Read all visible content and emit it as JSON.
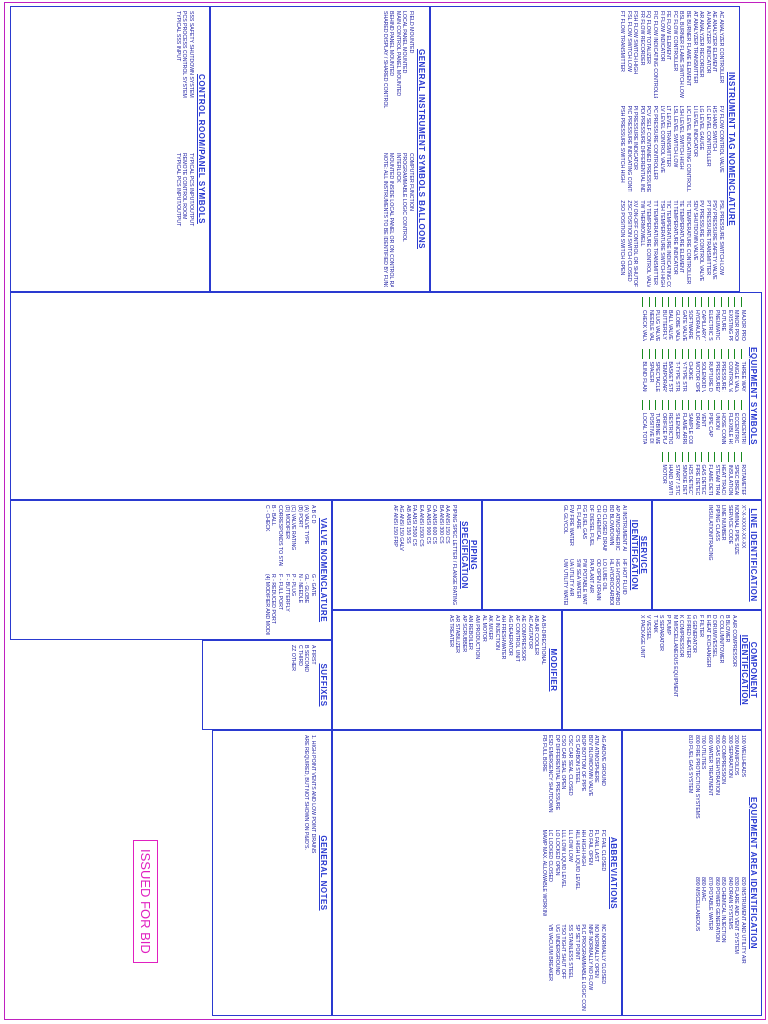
{
  "sections": [
    {
      "title": "INSTRUMENT TAG NOMENCLATURE",
      "items": [
        "AC  ANALYZER CONTROLLER",
        "AE  ANALYZER ELEMENT",
        "AI  ANALYZER INDICATOR",
        "AR  ANALYZER RECORDER",
        "AT  ANALYZER TRANSMITTER",
        "BE  BURNER FLAME ELEMENT",
        "BSL  BURNER FLAME SWITCH LOW",
        "FC  FLOW CONTROLLER",
        "FE  FLOW ELEMENT",
        "FI  FLOW INDICATOR",
        "FIC  FLOW INDICATING CONTROLLER",
        "FQ  FLOW TOTALIZER",
        "FR  FLOW RECORDER",
        "FSH  FLOW SWITCH HIGH",
        "FSL  FLOW SWITCH LOW",
        "FT  FLOW TRANSMITTER",
        "FV  FLOW CONTROL VALVE",
        "HS  HAND SWITCH",
        "LC  LEVEL CONTROLLER",
        "LG  LEVEL GAUGE",
        "LI  LEVEL INDICATOR",
        "LIC  LEVEL INDICATING CONTROLLER",
        "LSH  LEVEL SWITCH HIGH",
        "LSL  LEVEL SWITCH LOW",
        "LT  LEVEL TRANSMITTER",
        "LV  LEVEL CONTROL VALVE",
        "PC  PRESSURE CONTROLLER",
        "PCV  SELF CONTAINED PRESSURE CONTROL VALVE",
        "PDI  PRESSURE DIFFERENTIAL INDICATOR",
        "PI  PRESSURE INDICATOR",
        "PIC  PRESSURE INDICATING CONTROLLER",
        "PSH  PRESSURE SWITCH HIGH",
        "PSL  PRESSURE SWITCH LOW",
        "PSV  PRESSURE SAFETY VALVE",
        "PT  PRESSURE TRANSMITTER",
        "PV  PRESSURE CONTROL VALVE",
        "SDV  SHUTDOWN VALVE",
        "TC  TEMPERATURE CONTROLLER",
        "TE  TEMPERATURE ELEMENT",
        "TI  TEMPERATURE INDICATOR",
        "TIC  TEMPERATURE INDICATING CONTROLLER",
        "TSH  TEMPERATURE SWITCH HIGH",
        "TT  TEMPERATURE TRANSMITTER",
        "TV  TEMPERATURE CONTROL VALVE",
        "TW  THERMOWELL",
        "XV  ON-OFF CONTROL OR SHUTOFF VALVE",
        "ZSC  POSITION SWITCH CLOSED",
        "ZSO  POSITION SWITCH OPEN"
      ]
    },
    {
      "title": "GENERAL INSTRUMENT SYMBOLS BALLOONS",
      "items": [
        "FIELD MOUNTED",
        "LOCAL PANEL MOUNTED",
        "MAIN CONTROL PANEL MOUNTED",
        "BEHIND PANEL MOUNTED",
        "SHARED DISPLAY / SHARED CONTROL",
        "COMPUTER FUNCTION",
        "PROGRAMMABLE LOGIC CONTROL",
        "INTERLOCK",
        "MOUNTED INSIDE LOCAL PANEL OR ON CONTROL RACK",
        "NOTE: ALL INSTRUMENTS TO BE IDENTIFIED BY FUNCTION"
      ]
    },
    {
      "title": "CONTROL ROOM/PANEL SYMBOLS",
      "items": [
        "SSS  SAFETY SHUTDOWN SYSTEM",
        "PCS  PROCESS CONTROL SYSTEM",
        "TYPICAL SSS INPUT",
        "TYPICAL PCS INPUT/OUTPUT",
        "REMOTE CONTROL ROOM",
        "TYPICAL PCS INPUT/OUTPUT"
      ]
    },
    {
      "title": "EQUIPMENT SYMBOLS",
      "items": [
        "MAJOR PROCESS LINE",
        "MINOR PROCESS LINE",
        "EXISTING PROCESS LINE",
        "FUTURE",
        "PNEUMATIC SIGNAL",
        "ELECTRIC SIGNAL",
        "CAPILLARY TUBING",
        "HYDRAULIC SIGNAL",
        "SOFTWARE LINK",
        "GATE VALVE",
        "GLOBE VALVE",
        "BALL VALVE",
        "BUTTERFLY VALVE",
        "PLUG VALVE",
        "NEEDLE VALVE",
        "CHECK VALVE",
        "THREE WAY VALVE",
        "ANGLE VALVE",
        "CONTROL VALVE",
        "PRESSURE SAFETY VALVE",
        "PRESSURE/VACUUM RELIEF VALVE",
        "RUPTURE DISC",
        "SOLENOID VALVE",
        "MOTOR OPERATED VALVE",
        "CHOKE",
        "Y-TYPE STRAINER",
        "T-TYPE STRAINER",
        "BASKET STRAINER",
        "TEMPORARY STRAINER",
        "SPECTACLE BLIND",
        "SPACER",
        "BLIND FLANGE",
        "CONCENTRIC REDUCER",
        "ECCENTRIC REDUCER",
        "FLEXIBLE HOSE",
        "HOSE CONNECTION",
        "UNION",
        "PIPE CAP",
        "VENT",
        "DRAIN",
        "SAMPLE CONNECTION",
        "FLAME ARRESTOR",
        "SILENCER",
        "RESTRICTION ORIFICE",
        "ORIFICE PLATE",
        "TURBINE METER",
        "POSITIVE DISPLACEMENT METER",
        "LOCAL TOTALIZING",
        "ROTAMETER",
        "SPEC BREAK",
        "INSULATION",
        "HEAT TRACING",
        "STEAM TRAP",
        "FLAME DETECTOR",
        "GAS DETECTOR",
        "FIRE DETECTOR",
        "H2S DETECTOR",
        "SMOKE DETECTOR",
        "START / STOP",
        "HAND SWITCH",
        "MOTOR"
      ]
    },
    {
      "title": "LINE IDENTIFICATION",
      "items": [
        "X\"-X-XXXX-XX-XX",
        "NOMINAL PIPE SIZE",
        "SERVICE CODE",
        "LINE NUMBER",
        "PIPING CLASS",
        "INSULATION/TRACING"
      ]
    },
    {
      "title": "SERVICE IDENTIFICATION",
      "items": [
        "AI  INSTRUMENT AIR",
        "AP  ATMOSPHERIC VENT",
        "BD  BLOWDOWN",
        "CD  CLOSED DRAIN",
        "CH  CHEMICAL",
        "DF  DIESEL FUEL",
        "FG  FUEL GAS",
        "FL  FLARE",
        "FW  FIRE WATER",
        "GL  GLYCOL",
        "HF  HOT FLUID",
        "HG  HYDROCARBON GAS",
        "HL  HYDROCARBON LIQUID",
        "LO  LUBE OIL",
        "OD  OPEN DRAIN",
        "PA  PLANT AIR",
        "PW  POTABLE WATER",
        "SW  SEA WATER",
        "UA  UTILITY AIR",
        "UW  UTILITY WATER"
      ]
    },
    {
      "title": "PIPING SPECIFICATION",
      "items": [
        "PIPING SPEC LETTER / FLANGE RATING / MATERIAL",
        "AA  ANSI 150  CS",
        "BA  ANSI 300  CS",
        "CA  ANSI 600  CS",
        "DA  ANSI 900  CS",
        "EA  ANSI 1500  CS",
        "FA  ANSI 2500  CS",
        "AB  ANSI 150  SS",
        "AG  ANSI 150  GALV",
        "AF  ANSI 150  FRP"
      ]
    },
    {
      "title": "VALVE NOMENCLATURE",
      "items": [
        "A  B  C  D",
        "(A) VALVE TYPE",
        "(B) PORT",
        "(C) VALVE RATING",
        "(D) MODIFIER",
        "CORRESPONDS TO STANDARD PIPING",
        "B - BALL",
        "C - CHECK",
        "G - GATE",
        "GL - GLOBE",
        "N - NEEDLE",
        "P - PLUG",
        "F - BUTTERFLY",
        "F - FULL PORT",
        "R - REDUCED PORT",
        "(4) MODIFIER AND MODIFIER REFER TO VALVE SPECIFICATION FOR DESCRIPTION"
      ]
    },
    {
      "title": "COMPONENT IDENTIFICATION",
      "items": [
        "A  AIR COMPRESSOR",
        "B  BLOWER",
        "C  COLUMN/TOWER",
        "D  DRUM/VESSEL",
        "E  HEAT EXCHANGER",
        "F  FILTER",
        "G  GENERATOR",
        "H  FIRED HEATER",
        "K  COMPRESSOR",
        "M  MISCELLANEOUS EQUIPMENT",
        "P  PUMP",
        "S  SEPARATOR",
        "T  TANK",
        "V  VESSEL",
        "X  PACKAGE UNIT"
      ]
    },
    {
      "title": "MODIFIER",
      "items": [
        "AA  BI-DIRECTIONAL",
        "AB  AIR COOLER",
        "AC  AGITATOR",
        "AE  COMPRESSOR",
        "AF  CONTROL UNIT",
        "AG  DEAERATOR",
        "AH  FRESHWATER",
        "AJ  INJECTION",
        "AK  MIXER",
        "AL  MOTOR",
        "AM  PRODUCTION",
        "AN  REBOILER",
        "AP  SCRUBBER",
        "AR  STABILIZER",
        "AS  TREATER"
      ]
    },
    {
      "title": "SUFFIXES",
      "items": [
        "A  FIRST",
        "B  SECOND",
        "C  THIRD",
        "ZZ  OTHER"
      ]
    },
    {
      "title": "EQUIPMENT AREA IDENTIFICATION",
      "items": [
        "100  WELLHEADS",
        "200  MANIFOLDS",
        "300  SEPARATION",
        "400  COMPRESSION",
        "500  GAS DEHYDRATION",
        "600  WATER TREATMENT",
        "700  UTILITIES",
        "800  FIRE PROTECTION SYSTEMS",
        "810  FUEL GAS SYSTEM",
        "820  INSTRUMENT AND UTILITY AIR",
        "830  FLARE AND VENT SYSTEM",
        "840  DRAIN SYSTEMS",
        "850  CHEMICAL INJECTION",
        "860  POWER GENERATION",
        "870  POTABLE WATER",
        "880  HVAC",
        "890  MISCELLANEOUS"
      ]
    },
    {
      "title": "ABBREVIATIONS",
      "items": [
        "AG  ABOVE GROUND",
        "ATM  ATMOSPHERE",
        "BDV  BLOWDOWN VALVE",
        "BOP  BOTTOM OF PIPE",
        "CS  CARBON STEEL",
        "CSC  CAR SEAL CLOSED",
        "CSO  CAR SEAL OPEN",
        "DP  DIFFERENTIAL PRESSURE",
        "ESD  EMERGENCY SHUTDOWN",
        "FB  FULL BORE",
        "FC  FAIL CLOSED",
        "FL  FAIL LAST",
        "FO  FAIL OPEN",
        "HH  HIGH HIGH",
        "HLL  HIGH LIQUID LEVEL",
        "LL  LOW LOW",
        "LLL  LOW LIQUID LEVEL",
        "LO  LOCKED OPEN",
        "LC  LOCKED CLOSED",
        "MAWP  MAX. ALLOWABLE WORKING PRESSURE",
        "NC  NORMALLY CLOSED",
        "NO  NORMALLY OPEN",
        "NNF  NORMALLY NO FLOW",
        "PLC  PROGRAMMABLE LOGIC CONTROLLER",
        "SP  SET POINT",
        "SS  STAINLESS STEEL",
        "TSO  TIGHT SHUT OFF",
        "UG  UNDERGROUND",
        "VB  VACUUM BREAKER"
      ]
    },
    {
      "title": "GENERAL NOTES",
      "items": [
        "1. HIGH POINT VENTS AND LOW POINT DRAINS",
        "ARE REQUIRED, BUT NOT SHOWN ON P&ID'S."
      ]
    }
  ],
  "stamp": "ISSUED FOR BID"
}
